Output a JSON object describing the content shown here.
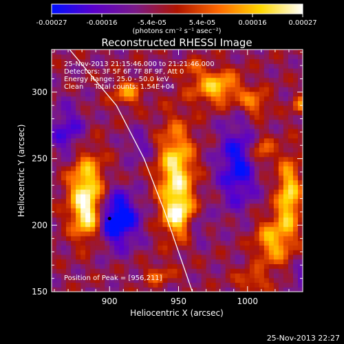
{
  "chart_data": {
    "type": "heatmap",
    "title": "Reconstructed RHESSI Image",
    "xlabel": "Heliocentric X (arcsec)",
    "ylabel": "Heliocentric Y (arcsec)",
    "xlim": [
      858,
      1040
    ],
    "ylim": [
      150,
      332
    ],
    "x_ticks": [
      900,
      950,
      1000
    ],
    "x_tick_labels": [
      "900",
      "950",
      "1000"
    ],
    "y_ticks": [
      150,
      200,
      250,
      300
    ],
    "y_tick_labels": [
      "150",
      "200",
      "250",
      "300"
    ],
    "colorbar": {
      "min": -0.00027,
      "max": 0.00027,
      "tick_labels": [
        "-0.00027",
        "-0.00016",
        "-5.4e-05",
        "5.4e-05",
        "0.00016",
        "0.00027"
      ],
      "unit_label": "(photons cm⁻² s⁻¹ asec⁻²)",
      "colormap": [
        "#0010ff",
        "#5a00cc",
        "#7a1a88",
        "#b01500",
        "#ff6a00",
        "#ffd800",
        "#ffffff"
      ]
    },
    "info_lines": [
      "25-Nov-2013 21:15:46.000 to 21:21:46.000",
      "Detectors: 3F 5F 6F 7F 8F 9F, Att 0",
      "Energy Range: 25.0 - 50.0 keV",
      "Clean     Total counts: 1.54E+04"
    ],
    "peak_label": "Position of Peak = [956,211]",
    "peak": {
      "x": 956,
      "y": 211
    },
    "footer_timestamp": "25-Nov-2013 22:27",
    "limb_curve": [
      [
        871,
        332
      ],
      [
        905,
        290
      ],
      [
        925,
        250
      ],
      [
        940,
        210
      ],
      [
        950,
        180
      ],
      [
        960,
        150
      ]
    ],
    "marker": {
      "x": 900,
      "y": 205
    },
    "sources": [
      {
        "x": 883,
        "y": 228,
        "sx": 9,
        "sy": 20,
        "amp": 1.0
      },
      {
        "x": 885,
        "y": 205,
        "sx": 8,
        "sy": 12,
        "amp": 0.7
      },
      {
        "x": 948,
        "y": 238,
        "sx": 9,
        "sy": 26,
        "amp": 1.05
      },
      {
        "x": 951,
        "y": 207,
        "sx": 8,
        "sy": 10,
        "amp": 0.7
      },
      {
        "x": 978,
        "y": 304,
        "sx": 12,
        "sy": 9,
        "amp": 0.85
      },
      {
        "x": 1005,
        "y": 292,
        "sx": 7,
        "sy": 7,
        "amp": 0.6
      },
      {
        "x": 1030,
        "y": 222,
        "sx": 6,
        "sy": 20,
        "amp": 0.95
      },
      {
        "x": 1018,
        "y": 188,
        "sx": 9,
        "sy": 13,
        "amp": 0.75
      },
      {
        "x": 1010,
        "y": 256,
        "sx": 6,
        "sy": 8,
        "amp": 0.6
      },
      {
        "x": 913,
        "y": 300,
        "sx": 8,
        "sy": 7,
        "amp": 0.6
      },
      {
        "x": 1038,
        "y": 290,
        "sx": 4,
        "sy": 5,
        "amp": 0.55
      },
      {
        "x": 935,
        "y": 163,
        "sx": 7,
        "sy": 5,
        "amp": 0.45
      },
      {
        "x": 1003,
        "y": 158,
        "sx": 8,
        "sy": 6,
        "amp": 0.45
      },
      {
        "x": 960,
        "y": 318,
        "sx": 6,
        "sy": 5,
        "amp": 0.35
      },
      {
        "x": 905,
        "y": 205,
        "sx": 11,
        "sy": 14,
        "amp": -1.05
      },
      {
        "x": 993,
        "y": 245,
        "sx": 10,
        "sy": 22,
        "amp": -0.75
      },
      {
        "x": 870,
        "y": 270,
        "sx": 9,
        "sy": 14,
        "amp": -0.55
      },
      {
        "x": 963,
        "y": 200,
        "sx": 6,
        "sy": 9,
        "amp": -0.4
      },
      {
        "x": 1040,
        "y": 160,
        "sx": 7,
        "sy": 7,
        "amp": -0.4
      },
      {
        "x": 922,
        "y": 260,
        "sx": 7,
        "sy": 8,
        "amp": -0.35
      }
    ]
  }
}
